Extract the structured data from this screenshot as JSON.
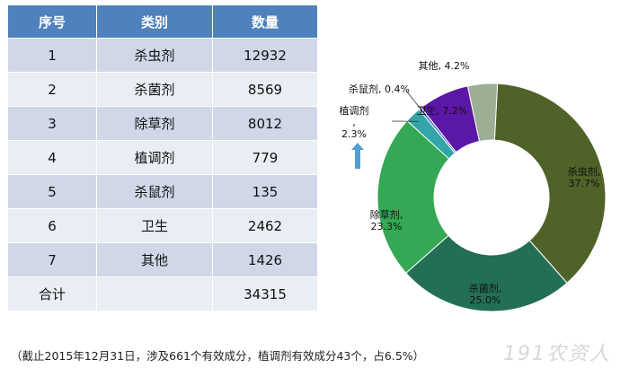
{
  "table": {
    "headers": [
      "序号",
      "类别",
      "数量"
    ],
    "rows": [
      {
        "no": "1",
        "cat": "杀虫剂",
        "count": "12932"
      },
      {
        "no": "2",
        "cat": "杀菌剂",
        "count": "8569"
      },
      {
        "no": "3",
        "cat": "除草剂",
        "count": "8012"
      },
      {
        "no": "4",
        "cat": "植调剂",
        "count": "779"
      },
      {
        "no": "5",
        "cat": "杀鼠剂",
        "count": "135"
      },
      {
        "no": "6",
        "cat": "卫生",
        "count": "2462"
      },
      {
        "no": "7",
        "cat": "其他",
        "count": "1426"
      }
    ],
    "total_label": "合计",
    "total_value": "34315"
  },
  "chart_data": {
    "type": "pie",
    "donut": true,
    "slices": [
      {
        "label": "杀虫剂",
        "value": 37.7,
        "text": "杀虫剂,\n37.7%",
        "color": "#4f6228"
      },
      {
        "label": "杀菌剂",
        "value": 25.0,
        "text": "杀菌剂,\n25.0%",
        "color": "#226f55"
      },
      {
        "label": "除草剂",
        "value": 23.3,
        "text": "除草剂,\n23.3%",
        "color": "#34a854"
      },
      {
        "label": "植调剂",
        "value": 2.3,
        "text": "植调剂\n,\n2.3%",
        "color": "#31a5a8"
      },
      {
        "label": "杀鼠剂",
        "value": 0.4,
        "text": "杀鼠剂, 0.4%",
        "color": "#4a78c8"
      },
      {
        "label": "卫生",
        "value": 7.2,
        "text": "卫生, 7.2%",
        "color": "#5b17a6"
      },
      {
        "label": "其他",
        "value": 4.2,
        "text": "其他, 4.2%",
        "color": "#9cae94"
      }
    ]
  },
  "footnote": "（截止2015年12月31日，涉及661个有效成分，植调剂有效成分43个，占6.5%）",
  "watermark": "191农资人",
  "colors": {
    "header_bg": "#4f81bd",
    "row_odd": "#d0d8e8",
    "row_even": "#e9edf4",
    "arrow": "#4f9fd8"
  }
}
